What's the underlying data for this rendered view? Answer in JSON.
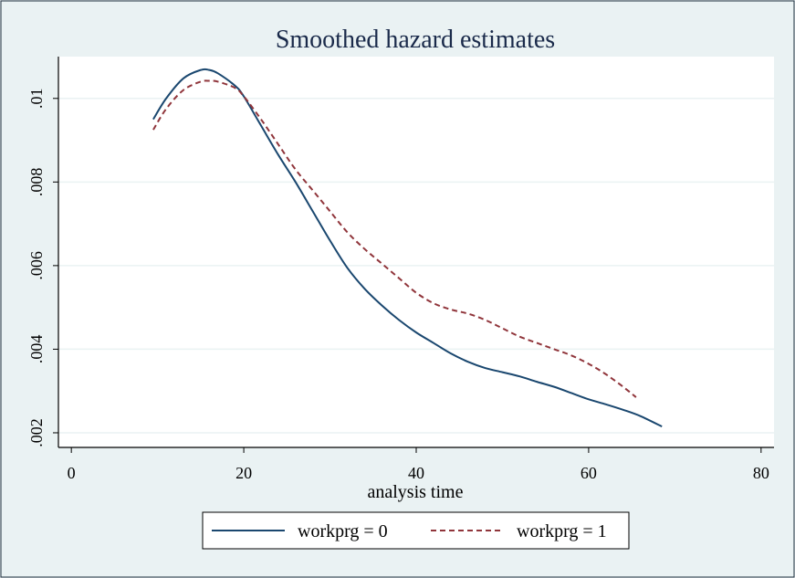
{
  "chart_data": {
    "type": "line",
    "title": "Smoothed hazard estimates",
    "xlabel": "analysis time",
    "ylabel": "",
    "xlim": [
      -1.5,
      81.5
    ],
    "ylim": [
      0.00165,
      0.011
    ],
    "x_ticks": [
      0,
      20,
      40,
      60,
      80
    ],
    "x_tick_labels": [
      "0",
      "20",
      "40",
      "60",
      "80"
    ],
    "y_ticks": [
      0.002,
      0.004,
      0.006,
      0.008,
      0.01
    ],
    "y_tick_labels": [
      ".002",
      ".004",
      ".006",
      ".008",
      ".01"
    ],
    "grid": "horizontal",
    "legend_position": "bottom",
    "series": [
      {
        "name": "workprg = 0",
        "color": "#1a476f",
        "dash": "solid",
        "x": [
          9.5,
          11,
          13,
          15,
          16,
          17,
          19,
          20,
          22,
          24,
          26,
          28,
          30,
          32,
          34,
          36,
          38,
          40,
          42,
          44,
          46,
          48,
          50,
          52,
          54,
          56,
          58,
          60,
          62,
          64,
          66,
          68.5
        ],
        "y": [
          0.0095,
          0.01,
          0.01048,
          0.01068,
          0.01068,
          0.0106,
          0.0103,
          0.01005,
          0.00935,
          0.00865,
          0.008,
          0.0073,
          0.0066,
          0.00595,
          0.00545,
          0.00505,
          0.0047,
          0.0044,
          0.00415,
          0.0039,
          0.0037,
          0.00355,
          0.00345,
          0.00335,
          0.00322,
          0.0031,
          0.00295,
          0.0028,
          0.00268,
          0.00255,
          0.0024,
          0.00215
        ]
      },
      {
        "name": "workprg = 1",
        "color": "#90353b",
        "dash": "dashed",
        "x": [
          9.5,
          11,
          13,
          15,
          16,
          17,
          19,
          20,
          22,
          24,
          26,
          28,
          30,
          32,
          34,
          36,
          38,
          40,
          42,
          44,
          46,
          48,
          50,
          52,
          54,
          56,
          58,
          60,
          62,
          64,
          65.5
        ],
        "y": [
          0.00925,
          0.00975,
          0.0102,
          0.0104,
          0.01042,
          0.0104,
          0.01025,
          0.01005,
          0.0095,
          0.0089,
          0.0083,
          0.0078,
          0.0073,
          0.0068,
          0.0064,
          0.00605,
          0.0057,
          0.00535,
          0.0051,
          0.00495,
          0.00485,
          0.0047,
          0.0045,
          0.0043,
          0.00415,
          0.004,
          0.00385,
          0.00365,
          0.0034,
          0.0031,
          0.00285
        ]
      }
    ]
  }
}
